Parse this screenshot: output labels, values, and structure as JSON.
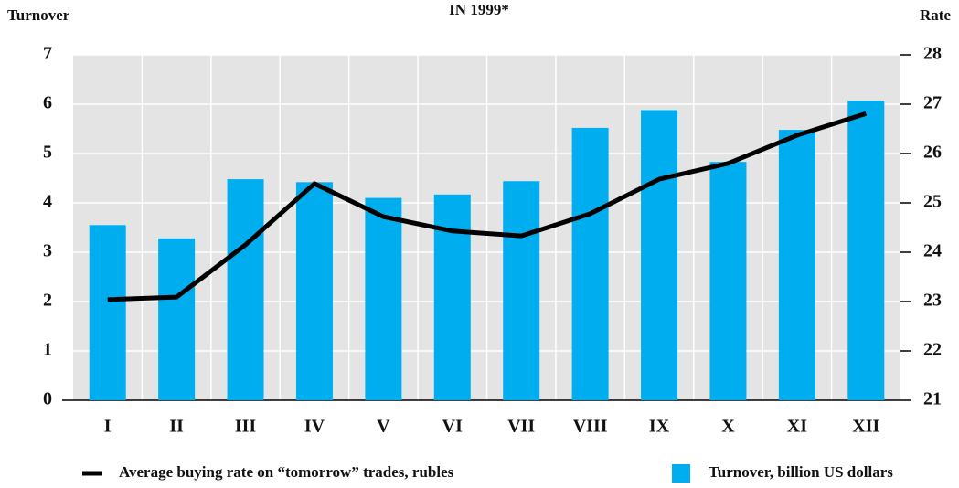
{
  "chart_data": {
    "type": "bar_line",
    "title": "IN 1999*",
    "y_label": "Turnover",
    "y2_label": "Rate",
    "categories": [
      "I",
      "II",
      "III",
      "IV",
      "V",
      "VI",
      "VII",
      "VIII",
      "IX",
      "X",
      "XI",
      "XII"
    ],
    "series": [
      {
        "name": "Average buying rate on “tomorrow” trades, rubles",
        "type": "line",
        "axis": "y2",
        "color": "#000000",
        "values": [
          23.04,
          23.09,
          24.15,
          25.39,
          24.72,
          24.43,
          24.33,
          24.78,
          25.48,
          25.8,
          26.37,
          26.81
        ]
      },
      {
        "name": "Turnover, billion US dollars",
        "type": "bar",
        "color": "#00aeef",
        "values": [
          3.55,
          3.28,
          4.48,
          4.42,
          4.1,
          4.17,
          4.44,
          5.52,
          5.88,
          4.83,
          5.48,
          6.07
        ]
      }
    ],
    "ylim": [
      0,
      7
    ],
    "yticks": [
      0,
      1,
      2,
      3,
      4,
      5,
      6,
      7
    ],
    "y2lim": [
      21,
      28
    ],
    "y2ticks": [
      21,
      22,
      23,
      24,
      25,
      26,
      27,
      28
    ],
    "grid": true
  }
}
